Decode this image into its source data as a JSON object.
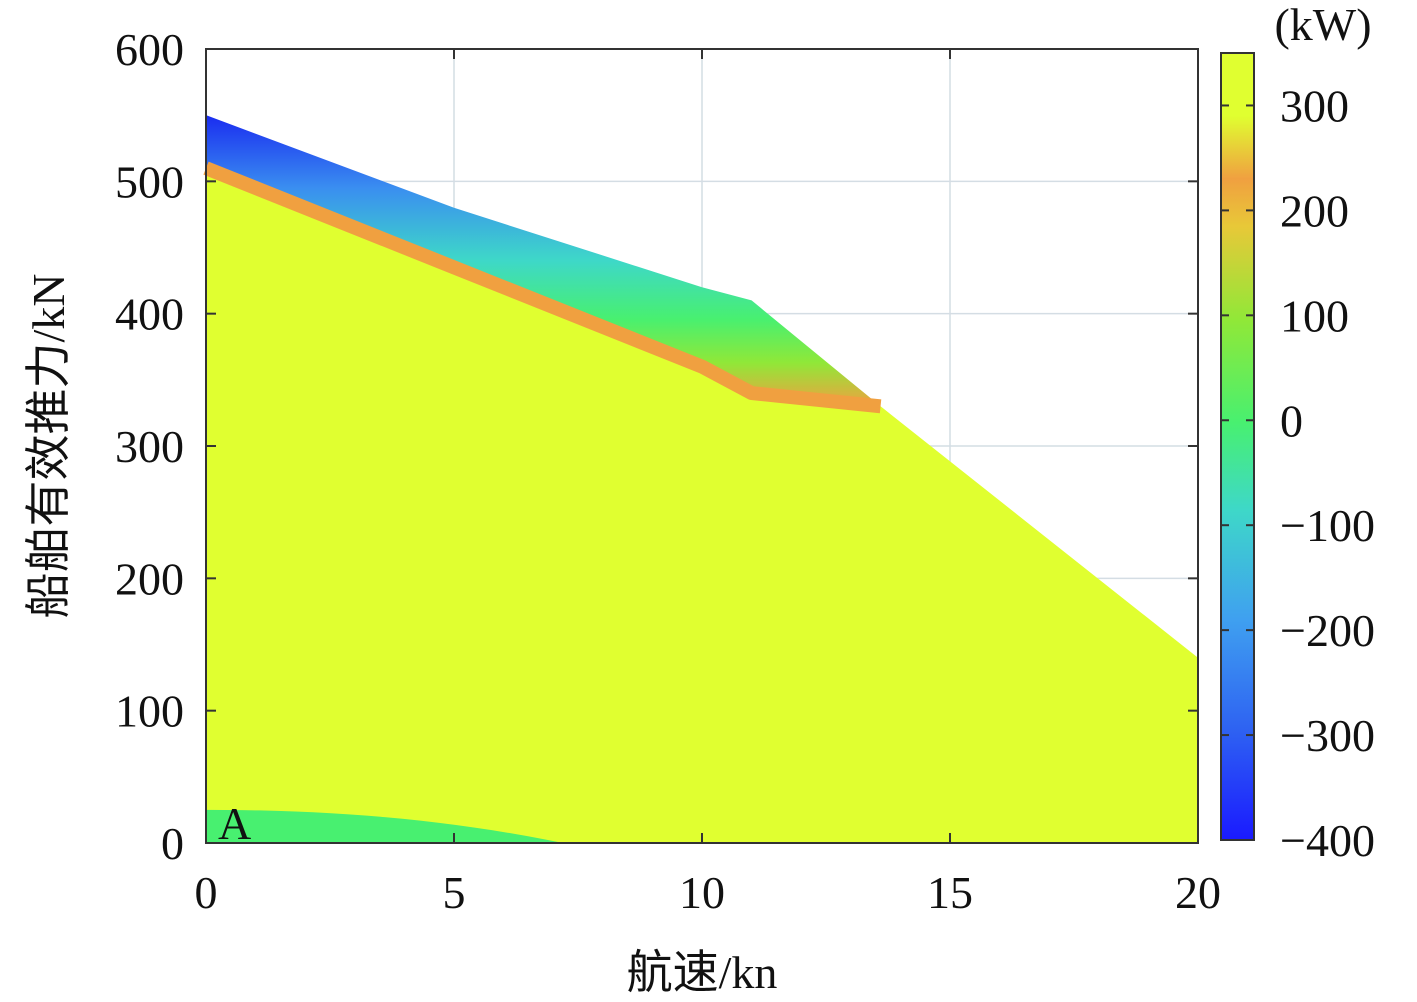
{
  "chart_data": {
    "type": "heatmap",
    "xlabel": "航速/kn",
    "ylabel": "船舶有效推力/kN",
    "xlim": [
      0,
      20
    ],
    "ylim": [
      0,
      600
    ],
    "x_ticks": [
      0,
      5,
      10,
      15,
      20
    ],
    "y_ticks": [
      0,
      100,
      200,
      300,
      400,
      500,
      600
    ],
    "grid": true,
    "colorbar": {
      "unit": "(kW)",
      "range": [
        -400,
        350
      ],
      "ticks": [
        -400,
        -300,
        -200,
        -100,
        0,
        100,
        200,
        300
      ],
      "tick_labels": [
        "−400",
        "−300",
        "−200",
        "−100",
        "0",
        "100",
        "200",
        "300"
      ],
      "colors": [
        "#1a1aff",
        "#2e62f2",
        "#3fa0f0",
        "#3ed8c8",
        "#48f070",
        "#90e838",
        "#e8c838",
        "#f0a040",
        "#e0ff30"
      ]
    },
    "boundary": {
      "upper_edge": [
        [
          0,
          550
        ],
        [
          5,
          480
        ],
        [
          10,
          420
        ],
        [
          11,
          410
        ],
        [
          13.6,
          330
        ],
        [
          20,
          140
        ]
      ],
      "max_power_edge": [
        [
          0,
          510
        ],
        [
          5,
          435
        ],
        [
          10,
          360
        ],
        [
          11,
          340
        ],
        [
          13.6,
          330
        ]
      ]
    },
    "regions": [
      {
        "label": "A",
        "value_kw": 0,
        "x_range": [
          0,
          7.2
        ],
        "y_range": [
          0,
          25
        ]
      }
    ],
    "plateau_value_kw": 350
  }
}
